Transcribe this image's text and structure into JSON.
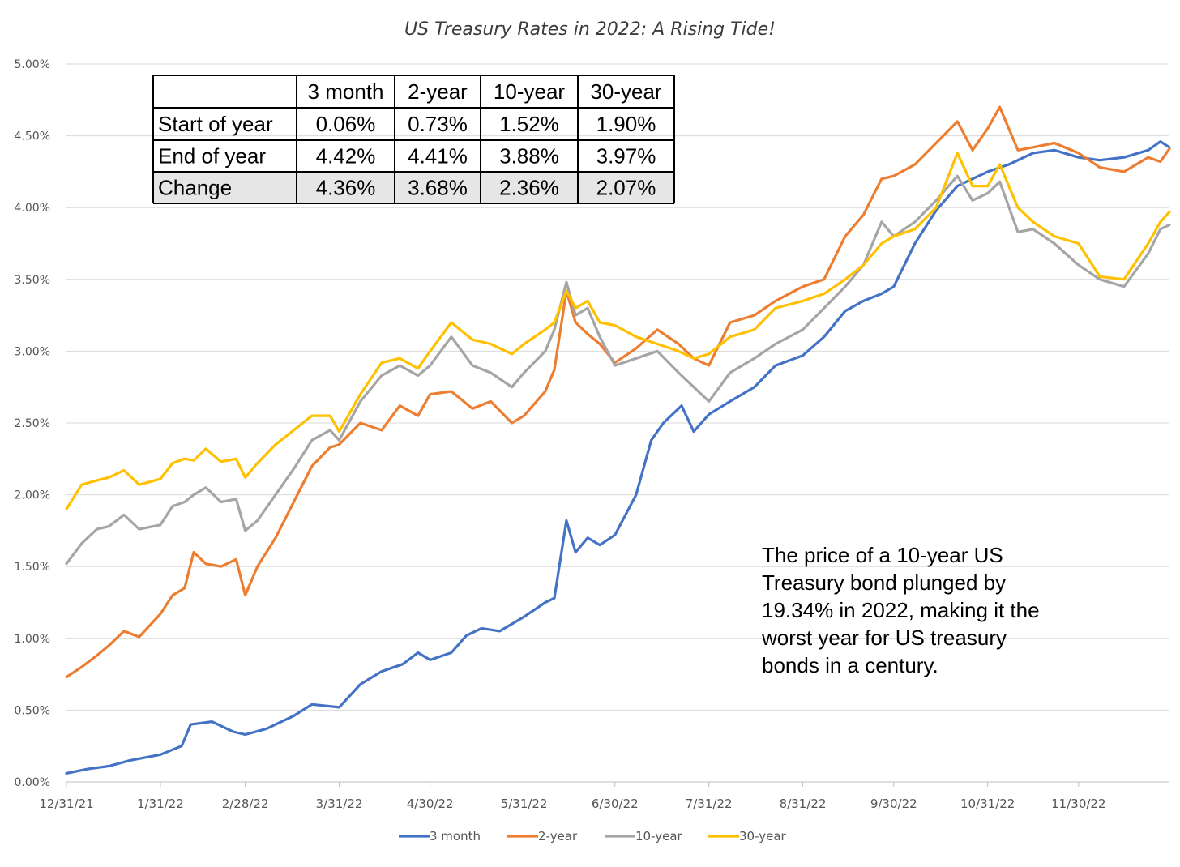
{
  "chart_data": {
    "type": "line",
    "title": "US Treasury Rates in 2022: A Rising Tide!",
    "xlabel": "",
    "ylabel": "",
    "x_start": "12/31/21",
    "x_end": "12/30/22",
    "x_ticks": [
      "12/31/21",
      "1/31/22",
      "2/28/22",
      "3/31/22",
      "4/30/22",
      "5/31/22",
      "6/30/22",
      "7/31/22",
      "8/31/22",
      "9/30/22",
      "10/31/22",
      "11/30/22"
    ],
    "ylim": [
      0,
      5
    ],
    "y_ticks": [
      "0.00%",
      "0.50%",
      "1.00%",
      "1.50%",
      "2.00%",
      "2.50%",
      "3.00%",
      "3.50%",
      "4.00%",
      "4.50%",
      "5.00%"
    ],
    "grid": "horizontal",
    "legend_position": "bottom",
    "colors": {
      "3 month": "#4472c4",
      "2-year": "#ed7d31",
      "10-year": "#a5a5a5",
      "30-year": "#ffc000"
    },
    "series": [
      {
        "name": "3 month",
        "points": [
          [
            "12/31/21",
            0.06
          ],
          [
            "1/7/22",
            0.09
          ],
          [
            "1/14/22",
            0.11
          ],
          [
            "1/21/22",
            0.15
          ],
          [
            "1/31/22",
            0.19
          ],
          [
            "2/7/22",
            0.25
          ],
          [
            "2/10/22",
            0.4
          ],
          [
            "2/17/22",
            0.42
          ],
          [
            "2/24/22",
            0.35
          ],
          [
            "2/28/22",
            0.33
          ],
          [
            "3/7/22",
            0.37
          ],
          [
            "3/16/22",
            0.46
          ],
          [
            "3/22/22",
            0.54
          ],
          [
            "3/31/22",
            0.52
          ],
          [
            "4/7/22",
            0.68
          ],
          [
            "4/14/22",
            0.77
          ],
          [
            "4/21/22",
            0.82
          ],
          [
            "4/26/22",
            0.9
          ],
          [
            "4/30/22",
            0.85
          ],
          [
            "5/7/22",
            0.9
          ],
          [
            "5/12/22",
            1.02
          ],
          [
            "5/17/22",
            1.07
          ],
          [
            "5/23/22",
            1.05
          ],
          [
            "5/31/22",
            1.15
          ],
          [
            "6/7/22",
            1.25
          ],
          [
            "6/10/22",
            1.28
          ],
          [
            "6/14/22",
            1.82
          ],
          [
            "6/17/22",
            1.6
          ],
          [
            "6/21/22",
            1.7
          ],
          [
            "6/25/22",
            1.65
          ],
          [
            "6/30/22",
            1.72
          ],
          [
            "7/7/22",
            2.0
          ],
          [
            "7/12/22",
            2.38
          ],
          [
            "7/16/22",
            2.5
          ],
          [
            "7/22/22",
            2.62
          ],
          [
            "7/26/22",
            2.44
          ],
          [
            "7/31/22",
            2.56
          ],
          [
            "8/7/22",
            2.65
          ],
          [
            "8/15/22",
            2.75
          ],
          [
            "8/22/22",
            2.9
          ],
          [
            "8/31/22",
            2.97
          ],
          [
            "9/7/22",
            3.1
          ],
          [
            "9/14/22",
            3.28
          ],
          [
            "9/20/22",
            3.35
          ],
          [
            "9/26/22",
            3.4
          ],
          [
            "9/30/22",
            3.45
          ],
          [
            "10/7/22",
            3.75
          ],
          [
            "10/14/22",
            3.98
          ],
          [
            "10/21/22",
            4.15
          ],
          [
            "10/31/22",
            4.25
          ],
          [
            "11/7/22",
            4.3
          ],
          [
            "11/15/22",
            4.38
          ],
          [
            "11/22/22",
            4.4
          ],
          [
            "11/30/22",
            4.35
          ],
          [
            "12/7/22",
            4.33
          ],
          [
            "12/15/22",
            4.35
          ],
          [
            "12/23/22",
            4.4
          ],
          [
            "12/27/22",
            4.46
          ],
          [
            "12/30/22",
            4.42
          ]
        ]
      },
      {
        "name": "2-year",
        "points": [
          [
            "12/31/21",
            0.73
          ],
          [
            "1/5/22",
            0.8
          ],
          [
            "1/10/22",
            0.88
          ],
          [
            "1/14/22",
            0.95
          ],
          [
            "1/19/22",
            1.05
          ],
          [
            "1/24/22",
            1.01
          ],
          [
            "1/31/22",
            1.17
          ],
          [
            "2/4/22",
            1.3
          ],
          [
            "2/8/22",
            1.35
          ],
          [
            "2/11/22",
            1.6
          ],
          [
            "2/15/22",
            1.52
          ],
          [
            "2/20/22",
            1.5
          ],
          [
            "2/25/22",
            1.55
          ],
          [
            "2/28/22",
            1.3
          ],
          [
            "3/4/22",
            1.5
          ],
          [
            "3/10/22",
            1.7
          ],
          [
            "3/16/22",
            1.95
          ],
          [
            "3/22/22",
            2.2
          ],
          [
            "3/28/22",
            2.33
          ],
          [
            "3/31/22",
            2.35
          ],
          [
            "4/7/22",
            2.5
          ],
          [
            "4/14/22",
            2.45
          ],
          [
            "4/20/22",
            2.62
          ],
          [
            "4/26/22",
            2.55
          ],
          [
            "4/30/22",
            2.7
          ],
          [
            "5/7/22",
            2.72
          ],
          [
            "5/14/22",
            2.6
          ],
          [
            "5/20/22",
            2.65
          ],
          [
            "5/27/22",
            2.5
          ],
          [
            "5/31/22",
            2.55
          ],
          [
            "6/7/22",
            2.72
          ],
          [
            "6/10/22",
            2.87
          ],
          [
            "6/14/22",
            3.42
          ],
          [
            "6/17/22",
            3.2
          ],
          [
            "6/21/22",
            3.12
          ],
          [
            "6/25/22",
            3.05
          ],
          [
            "6/30/22",
            2.92
          ],
          [
            "7/7/22",
            3.02
          ],
          [
            "7/14/22",
            3.15
          ],
          [
            "7/21/22",
            3.05
          ],
          [
            "7/26/22",
            2.95
          ],
          [
            "7/31/22",
            2.9
          ],
          [
            "8/7/22",
            3.2
          ],
          [
            "8/15/22",
            3.25
          ],
          [
            "8/22/22",
            3.35
          ],
          [
            "8/31/22",
            3.45
          ],
          [
            "9/7/22",
            3.5
          ],
          [
            "9/14/22",
            3.8
          ],
          [
            "9/20/22",
            3.95
          ],
          [
            "9/26/22",
            4.2
          ],
          [
            "9/30/22",
            4.22
          ],
          [
            "10/7/22",
            4.3
          ],
          [
            "10/14/22",
            4.45
          ],
          [
            "10/21/22",
            4.6
          ],
          [
            "10/26/22",
            4.4
          ],
          [
            "10/31/22",
            4.55
          ],
          [
            "11/4/22",
            4.7
          ],
          [
            "11/10/22",
            4.4
          ],
          [
            "11/15/22",
            4.42
          ],
          [
            "11/22/22",
            4.45
          ],
          [
            "11/30/22",
            4.38
          ],
          [
            "12/7/22",
            4.28
          ],
          [
            "12/15/22",
            4.25
          ],
          [
            "12/23/22",
            4.35
          ],
          [
            "12/27/22",
            4.32
          ],
          [
            "12/30/22",
            4.41
          ]
        ]
      },
      {
        "name": "10-year",
        "points": [
          [
            "12/31/21",
            1.52
          ],
          [
            "1/5/22",
            1.66
          ],
          [
            "1/10/22",
            1.76
          ],
          [
            "1/14/22",
            1.78
          ],
          [
            "1/19/22",
            1.86
          ],
          [
            "1/24/22",
            1.76
          ],
          [
            "1/31/22",
            1.79
          ],
          [
            "2/4/22",
            1.92
          ],
          [
            "2/8/22",
            1.95
          ],
          [
            "2/11/22",
            2.0
          ],
          [
            "2/15/22",
            2.05
          ],
          [
            "2/20/22",
            1.95
          ],
          [
            "2/25/22",
            1.97
          ],
          [
            "2/28/22",
            1.75
          ],
          [
            "3/4/22",
            1.82
          ],
          [
            "3/10/22",
            2.0
          ],
          [
            "3/16/22",
            2.18
          ],
          [
            "3/22/22",
            2.38
          ],
          [
            "3/28/22",
            2.45
          ],
          [
            "3/31/22",
            2.38
          ],
          [
            "4/7/22",
            2.65
          ],
          [
            "4/14/22",
            2.83
          ],
          [
            "4/20/22",
            2.9
          ],
          [
            "4/26/22",
            2.83
          ],
          [
            "4/30/22",
            2.9
          ],
          [
            "5/7/22",
            3.1
          ],
          [
            "5/14/22",
            2.9
          ],
          [
            "5/20/22",
            2.85
          ],
          [
            "5/27/22",
            2.75
          ],
          [
            "5/31/22",
            2.85
          ],
          [
            "6/7/22",
            3.0
          ],
          [
            "6/10/22",
            3.15
          ],
          [
            "6/14/22",
            3.48
          ],
          [
            "6/17/22",
            3.25
          ],
          [
            "6/21/22",
            3.3
          ],
          [
            "6/25/22",
            3.1
          ],
          [
            "6/30/22",
            2.9
          ],
          [
            "7/7/22",
            2.95
          ],
          [
            "7/14/22",
            3.0
          ],
          [
            "7/21/22",
            2.85
          ],
          [
            "7/26/22",
            2.75
          ],
          [
            "7/31/22",
            2.65
          ],
          [
            "8/7/22",
            2.85
          ],
          [
            "8/15/22",
            2.95
          ],
          [
            "8/22/22",
            3.05
          ],
          [
            "8/31/22",
            3.15
          ],
          [
            "9/7/22",
            3.3
          ],
          [
            "9/14/22",
            3.45
          ],
          [
            "9/20/22",
            3.6
          ],
          [
            "9/26/22",
            3.9
          ],
          [
            "9/30/22",
            3.8
          ],
          [
            "10/7/22",
            3.9
          ],
          [
            "10/14/22",
            4.05
          ],
          [
            "10/21/22",
            4.22
          ],
          [
            "10/26/22",
            4.05
          ],
          [
            "10/31/22",
            4.1
          ],
          [
            "11/4/22",
            4.18
          ],
          [
            "11/10/22",
            3.83
          ],
          [
            "11/15/22",
            3.85
          ],
          [
            "11/22/22",
            3.75
          ],
          [
            "11/30/22",
            3.6
          ],
          [
            "12/7/22",
            3.5
          ],
          [
            "12/15/22",
            3.45
          ],
          [
            "12/23/22",
            3.68
          ],
          [
            "12/27/22",
            3.85
          ],
          [
            "12/30/22",
            3.88
          ]
        ]
      },
      {
        "name": "30-year",
        "points": [
          [
            "12/31/21",
            1.9
          ],
          [
            "1/5/22",
            2.07
          ],
          [
            "1/10/22",
            2.1
          ],
          [
            "1/14/22",
            2.12
          ],
          [
            "1/19/22",
            2.17
          ],
          [
            "1/24/22",
            2.07
          ],
          [
            "1/31/22",
            2.11
          ],
          [
            "2/4/22",
            2.22
          ],
          [
            "2/8/22",
            2.25
          ],
          [
            "2/11/22",
            2.24
          ],
          [
            "2/15/22",
            2.32
          ],
          [
            "2/20/22",
            2.23
          ],
          [
            "2/25/22",
            2.25
          ],
          [
            "2/28/22",
            2.12
          ],
          [
            "3/4/22",
            2.22
          ],
          [
            "3/10/22",
            2.35
          ],
          [
            "3/16/22",
            2.45
          ],
          [
            "3/22/22",
            2.55
          ],
          [
            "3/28/22",
            2.55
          ],
          [
            "3/31/22",
            2.44
          ],
          [
            "4/7/22",
            2.7
          ],
          [
            "4/14/22",
            2.92
          ],
          [
            "4/20/22",
            2.95
          ],
          [
            "4/26/22",
            2.88
          ],
          [
            "4/30/22",
            3.0
          ],
          [
            "5/7/22",
            3.2
          ],
          [
            "5/14/22",
            3.08
          ],
          [
            "5/20/22",
            3.05
          ],
          [
            "5/27/22",
            2.98
          ],
          [
            "5/31/22",
            3.05
          ],
          [
            "6/7/22",
            3.15
          ],
          [
            "6/10/22",
            3.2
          ],
          [
            "6/14/22",
            3.42
          ],
          [
            "6/17/22",
            3.3
          ],
          [
            "6/21/22",
            3.35
          ],
          [
            "6/25/22",
            3.2
          ],
          [
            "6/30/22",
            3.18
          ],
          [
            "7/7/22",
            3.1
          ],
          [
            "7/14/22",
            3.05
          ],
          [
            "7/21/22",
            3.0
          ],
          [
            "7/26/22",
            2.95
          ],
          [
            "7/31/22",
            2.98
          ],
          [
            "8/7/22",
            3.1
          ],
          [
            "8/15/22",
            3.15
          ],
          [
            "8/22/22",
            3.3
          ],
          [
            "8/31/22",
            3.35
          ],
          [
            "9/7/22",
            3.4
          ],
          [
            "9/14/22",
            3.5
          ],
          [
            "9/20/22",
            3.6
          ],
          [
            "9/26/22",
            3.75
          ],
          [
            "9/30/22",
            3.8
          ],
          [
            "10/7/22",
            3.85
          ],
          [
            "10/14/22",
            4.0
          ],
          [
            "10/21/22",
            4.38
          ],
          [
            "10/26/22",
            4.15
          ],
          [
            "10/31/22",
            4.15
          ],
          [
            "11/4/22",
            4.3
          ],
          [
            "11/10/22",
            4.0
          ],
          [
            "11/15/22",
            3.9
          ],
          [
            "11/22/22",
            3.8
          ],
          [
            "11/30/22",
            3.75
          ],
          [
            "12/7/22",
            3.52
          ],
          [
            "12/15/22",
            3.5
          ],
          [
            "12/23/22",
            3.75
          ],
          [
            "12/27/22",
            3.9
          ],
          [
            "12/30/22",
            3.97
          ]
        ]
      }
    ]
  },
  "summary_table": {
    "headers": [
      "",
      "3 month",
      "2-year",
      "10-year",
      "30-year"
    ],
    "rows": [
      [
        "Start of year",
        "0.06%",
        "0.73%",
        "1.52%",
        "1.90%"
      ],
      [
        "End of year",
        "4.42%",
        "4.41%",
        "3.88%",
        "3.97%"
      ],
      [
        "Change",
        "4.36%",
        "3.68%",
        "2.36%",
        "2.07%"
      ]
    ],
    "highlight_row_color": "#e7e6e6"
  },
  "annotation": {
    "lines": [
      "The price of a 10-year US",
      "Treasury bond plunged by",
      "19.34% in 2022, making it the",
      "worst year for US treasury",
      "bonds in a century."
    ]
  }
}
